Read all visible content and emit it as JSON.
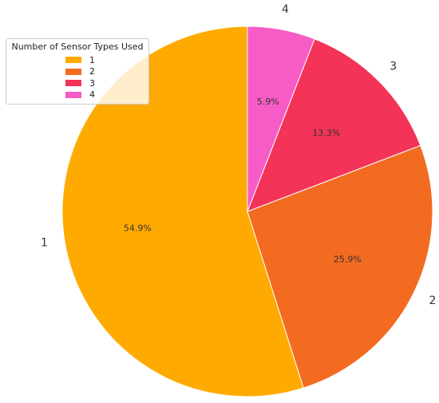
{
  "chart_data": {
    "type": "pie",
    "legend_title": "Number of Sensor Types Used",
    "legend_placement": "top-left",
    "slices": [
      {
        "label": "1",
        "value": 54.9,
        "pct_label": "54.9%",
        "color": "#ffaa00"
      },
      {
        "label": "2",
        "value": 25.9,
        "pct_label": "25.9%",
        "color": "#f26b21"
      },
      {
        "label": "3",
        "value": 13.3,
        "pct_label": "13.3%",
        "color": "#f43358"
      },
      {
        "label": "4",
        "value": 5.9,
        "pct_label": "5.9%",
        "color": "#f75bc5"
      }
    ]
  }
}
